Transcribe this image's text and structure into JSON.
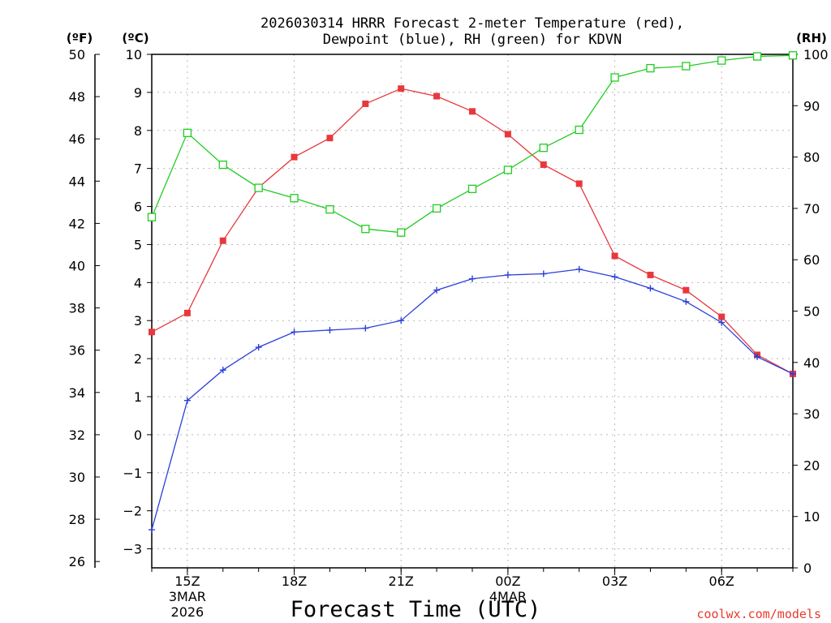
{
  "chart_data": {
    "type": "line",
    "title_line1": "2026030314 HRRR Forecast 2-meter Temperature (red),",
    "title_line2": "Dewpoint (blue), RH (green) for KDVN",
    "xlabel": "Forecast Time (UTC)",
    "credit": "coolwx.com/models",
    "units": {
      "fahrenheit": "(ºF)",
      "celsius": "(ºC)",
      "rh": "(RH)"
    },
    "x_hours": [
      14,
      15,
      16,
      17,
      18,
      19,
      20,
      21,
      22,
      23,
      24,
      25,
      26,
      27,
      28,
      29,
      30,
      31,
      32
    ],
    "xlim": [
      14,
      32
    ],
    "x_ticks": [
      {
        "hour": 15,
        "label": "15Z",
        "date": "3MAR",
        "year": "2026"
      },
      {
        "hour": 18,
        "label": "18Z"
      },
      {
        "hour": 21,
        "label": "21Z"
      },
      {
        "hour": 24,
        "label": "00Z",
        "date": "4MAR"
      },
      {
        "hour": 27,
        "label": "03Z"
      },
      {
        "hour": 30,
        "label": "06Z"
      }
    ],
    "celsius_axis": {
      "min": -3.5,
      "max": 10,
      "ticks": [
        10,
        9,
        8,
        7,
        6,
        5,
        4,
        3,
        2,
        1,
        0,
        -1,
        -2,
        -3
      ]
    },
    "fahrenheit_axis": {
      "ticks": [
        50,
        48,
        46,
        44,
        42,
        40,
        38,
        36,
        34,
        32,
        30,
        28,
        26
      ]
    },
    "rh_axis": {
      "min": 0,
      "max": 100,
      "ticks": [
        100,
        90,
        80,
        70,
        60,
        50,
        40,
        30,
        20,
        10,
        0
      ]
    },
    "series": [
      {
        "name": "Temperature",
        "color": "#e8383d",
        "marker": "filled-square",
        "axis": "celsius",
        "values": [
          2.7,
          3.2,
          5.1,
          6.5,
          7.3,
          7.8,
          8.7,
          9.1,
          8.9,
          8.5,
          7.9,
          7.1,
          6.6,
          4.7,
          4.2,
          3.8,
          3.1,
          2.1,
          1.6
        ]
      },
      {
        "name": "Dewpoint",
        "color": "#2b3fd8",
        "marker": "plus",
        "axis": "celsius",
        "values": [
          -2.5,
          0.9,
          1.7,
          2.3,
          2.7,
          2.75,
          2.8,
          3.0,
          3.8,
          4.1,
          4.2,
          4.23,
          4.35,
          4.15,
          3.85,
          3.5,
          2.95,
          2.05,
          1.6
        ]
      },
      {
        "name": "RH",
        "color": "#22cc22",
        "marker": "open-square",
        "axis": "rh",
        "values": [
          68.3,
          84.7,
          78.5,
          74.0,
          72.0,
          69.8,
          66.0,
          65.3,
          70.0,
          73.8,
          77.5,
          81.8,
          85.3,
          95.5,
          97.3,
          97.7,
          98.8,
          99.6,
          99.8
        ]
      }
    ]
  }
}
